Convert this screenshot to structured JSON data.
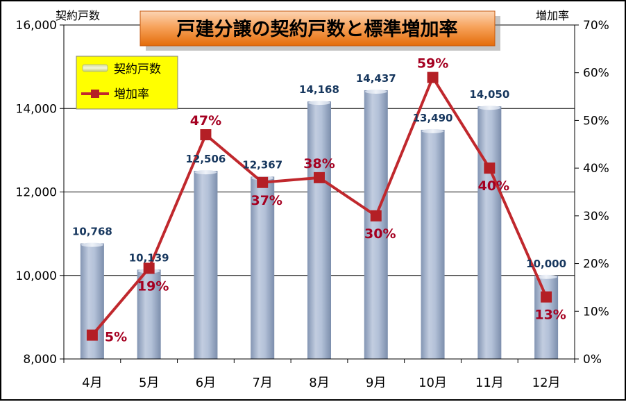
{
  "chart_data": {
    "type": "bar",
    "title": "戸建分譲の契約戸数と標準増加率",
    "ylabel_left": "契約戸数",
    "ylabel_right": "増加率",
    "categories": [
      "4月",
      "5月",
      "6月",
      "7月",
      "8月",
      "9月",
      "10月",
      "11月",
      "12月"
    ],
    "ylim_left": [
      8000,
      16000
    ],
    "yticks_left": [
      "8,000",
      "10,000",
      "12,000",
      "14,000",
      "16,000"
    ],
    "ylim_right": [
      0,
      70
    ],
    "yticks_right": [
      "0%",
      "10%",
      "20%",
      "30%",
      "40%",
      "50%",
      "60%",
      "70%"
    ],
    "grid": true,
    "legend_position": "top-left",
    "series": [
      {
        "name": "契約戸数",
        "type": "bar",
        "axis": "left",
        "values": [
          10768,
          10139,
          12506,
          12367,
          14168,
          14437,
          13490,
          14050,
          10000
        ],
        "labels": [
          "10,768",
          "10,139",
          "12,506",
          "12,367",
          "14,168",
          "14,437",
          "13,490",
          "14,050",
          "10,000"
        ],
        "color": "#a7b7cf"
      },
      {
        "name": "増加率",
        "type": "line",
        "axis": "right",
        "values": [
          5,
          19,
          47,
          37,
          38,
          30,
          59,
          40,
          13
        ],
        "labels": [
          "5%",
          "19%",
          "47%",
          "37%",
          "38%",
          "30%",
          "59%",
          "40%",
          "13%"
        ],
        "color": "#c0282d"
      }
    ]
  },
  "colors": {
    "title_bg": "#f79646",
    "legend_bg": "#ffff00",
    "line": "#c0282d",
    "marker": "#b41f25",
    "pct_label": "#a50021",
    "bar_label": "#17375e"
  }
}
